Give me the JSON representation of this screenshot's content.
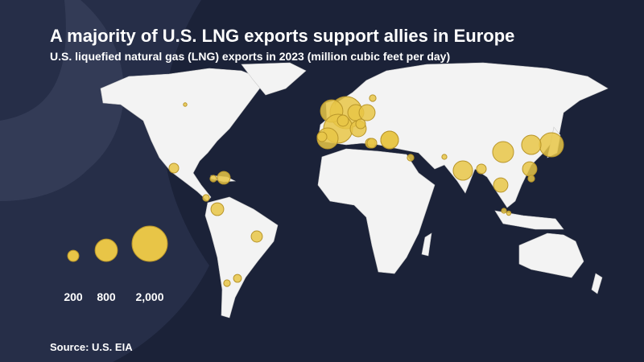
{
  "header": {
    "title": "A majority of U.S. LNG exports support allies in Europe",
    "subtitle": "U.S. liquefied natural gas (LNG) exports in 2023 (million cubic feet per day)"
  },
  "bubbles": {
    "values": [
      1650,
      800,
      1340,
      700,
      410,
      500,
      410,
      410,
      200,
      150,
      150,
      150,
      70,
      150,
      500,
      70,
      40,
      600,
      150,
      700,
      930,
      600,
      330,
      260,
      70,
      70,
      260,
      70,
      200,
      100,
      330,
      20,
      30,
      40,
      150,
      70
    ]
  },
  "legend": {
    "items": [
      {
        "value": 200,
        "label": "200"
      },
      {
        "value": 800,
        "label": "800"
      },
      {
        "value": 2000,
        "label": "2,000"
      }
    ]
  },
  "footer": {
    "source": "Source: U.S. EIA"
  }
}
